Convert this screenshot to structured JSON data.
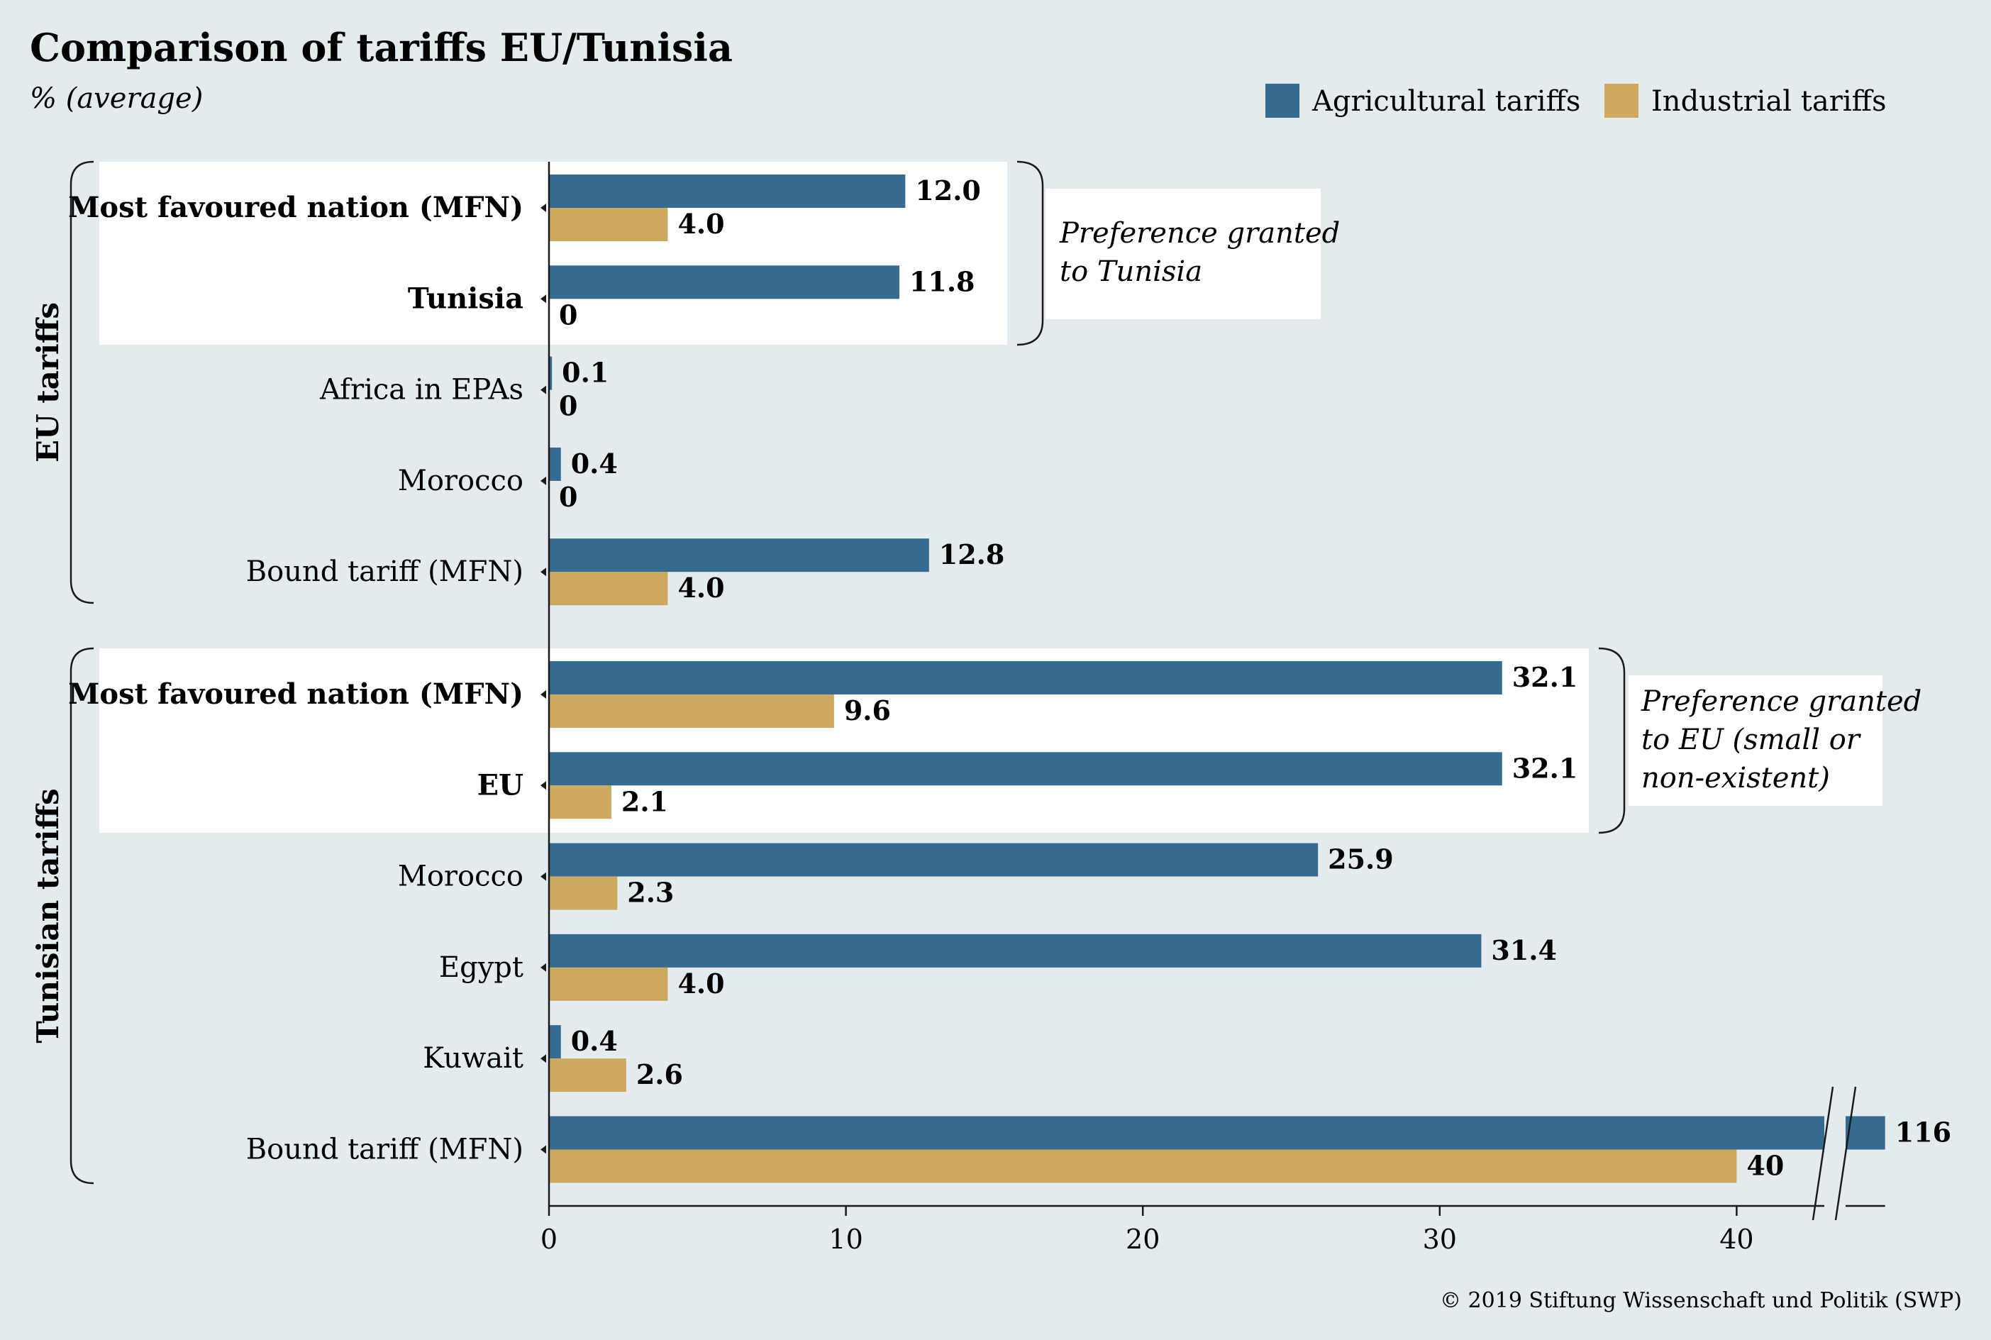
{
  "header": {
    "title": "Comparison of tariffs EU/Tunisia",
    "subtitle": "% (average)"
  },
  "legend": [
    {
      "label": "Agricultural tariffs",
      "color": "#356b91"
    },
    {
      "label": "Industrial tariffs",
      "color": "#cda960"
    }
  ],
  "notes": {
    "eu": [
      "Preference granted",
      "to Tunisia"
    ],
    "tunisia": [
      "Preference granted",
      "to EU (small or",
      "non-existent)"
    ]
  },
  "credit": "© 2019 Stiftung Wissenschaft und Politik (SWP)",
  "chart_data": {
    "type": "bar",
    "orientation": "horizontal",
    "xlim": [
      0,
      45
    ],
    "x_ticks": [
      0,
      10,
      20,
      30,
      40
    ],
    "axis_break": "between 40 and 116",
    "series_names": [
      "Agricultural tariffs",
      "Industrial tariffs"
    ],
    "groups": [
      {
        "name": "EU tariffs",
        "categories": [
          {
            "label": "Most favoured nation (MFN)",
            "bold": true,
            "agricultural": 12.0,
            "industrial": 4.0,
            "agri_label": "12.0",
            "ind_label": "4.0"
          },
          {
            "label": "Tunisia",
            "bold": true,
            "agricultural": 11.8,
            "industrial": 0,
            "agri_label": "11.8",
            "ind_label": "0"
          },
          {
            "label": "Africa in EPAs",
            "bold": false,
            "agricultural": 0.1,
            "industrial": 0,
            "agri_label": "0.1",
            "ind_label": "0"
          },
          {
            "label": "Morocco",
            "bold": false,
            "agricultural": 0.4,
            "industrial": 0,
            "agri_label": "0.4",
            "ind_label": "0"
          },
          {
            "label": "Bound tariff (MFN)",
            "bold": false,
            "agricultural": 12.8,
            "industrial": 4.0,
            "agri_label": "12.8",
            "ind_label": "4.0"
          }
        ]
      },
      {
        "name": "Tunisian tariffs",
        "categories": [
          {
            "label": "Most favoured nation (MFN)",
            "bold": true,
            "agricultural": 32.1,
            "industrial": 9.6,
            "agri_label": "32.1",
            "ind_label": "9.6"
          },
          {
            "label": "EU",
            "bold": true,
            "agricultural": 32.1,
            "industrial": 2.1,
            "agri_label": "32.1",
            "ind_label": "2.1"
          },
          {
            "label": "Morocco",
            "bold": false,
            "agricultural": 25.9,
            "industrial": 2.3,
            "agri_label": "25.9",
            "ind_label": "2.3"
          },
          {
            "label": "Egypt",
            "bold": false,
            "agricultural": 31.4,
            "industrial": 4.0,
            "agri_label": "31.4",
            "ind_label": "4.0"
          },
          {
            "label": "Kuwait",
            "bold": false,
            "agricultural": 0.4,
            "industrial": 2.6,
            "agri_label": "0.4",
            "ind_label": "2.6"
          },
          {
            "label": "Bound tariff (MFN)",
            "bold": false,
            "agricultural": 116,
            "industrial": 40,
            "agri_label": "116",
            "ind_label": "40"
          }
        ]
      }
    ]
  }
}
